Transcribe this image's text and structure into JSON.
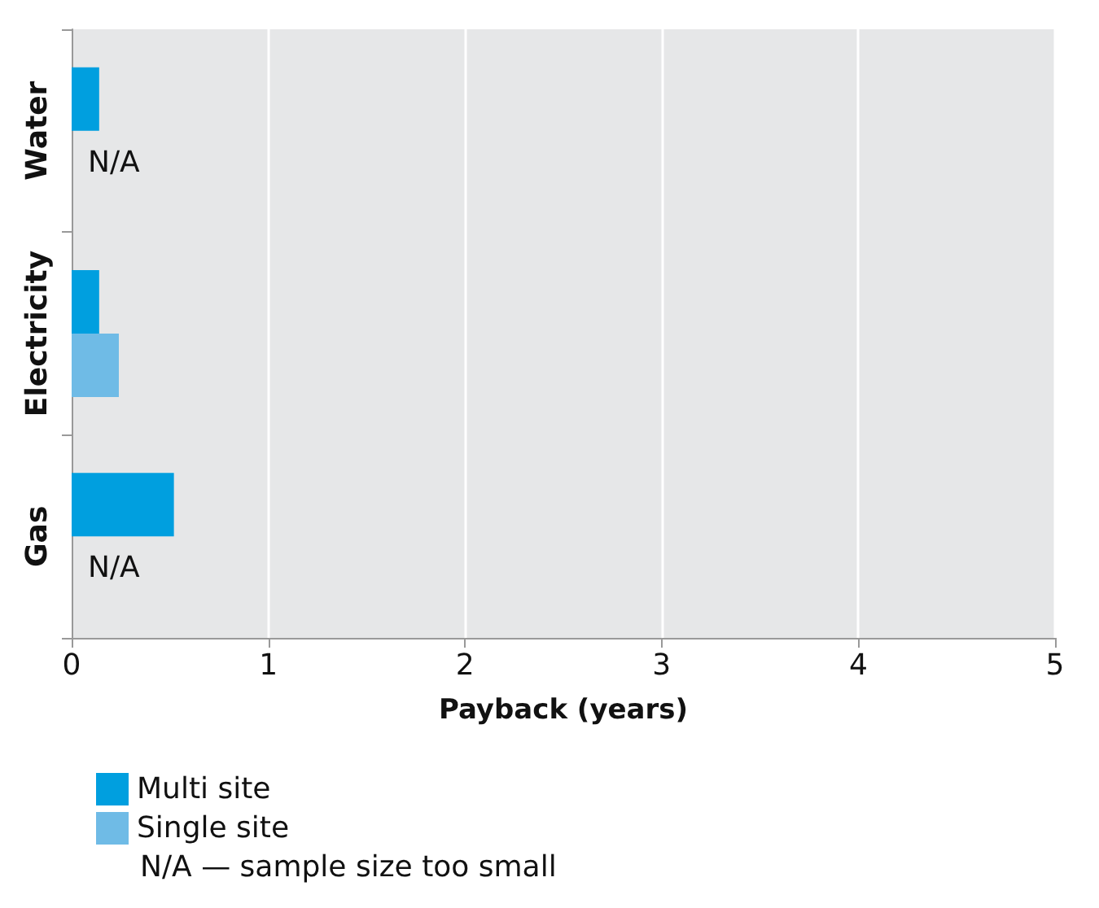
{
  "chart_data": {
    "type": "bar",
    "orientation": "horizontal",
    "xlabel": "Payback (years)",
    "categories": [
      "Water",
      "Electricity",
      "Gas"
    ],
    "series": [
      {
        "name": "Multi site",
        "color": "#009fdf",
        "values": [
          0.14,
          0.14,
          0.52
        ]
      },
      {
        "name": "Single site",
        "color": "#6fbbe6",
        "values": [
          null,
          0.24,
          null
        ]
      }
    ],
    "xlim": [
      0,
      5
    ],
    "xticks": [
      0,
      1,
      2,
      3,
      4,
      5
    ],
    "grid": "x",
    "legend": "bottom left",
    "annotations": [
      {
        "text": "N/A",
        "x": 0,
        "y": "Water"
      },
      {
        "text": "N/A",
        "x": 0,
        "y": "Gas"
      },
      "N/A — sample size too small"
    ]
  }
}
